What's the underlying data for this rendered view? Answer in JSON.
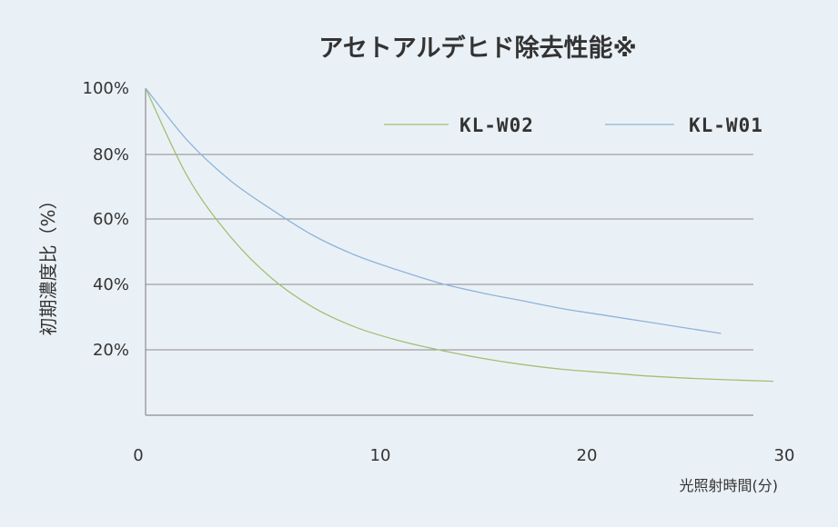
{
  "chart_data": {
    "type": "line",
    "title": "アセトアルデヒド除去性能※",
    "xlabel": "光照射時間(分)",
    "ylabel": "初期濃度比（%）",
    "xlim": [
      0,
      30
    ],
    "ylim": [
      0,
      100
    ],
    "x_ticks": [
      "0",
      "10",
      "20",
      "30"
    ],
    "y_ticks": [
      "100%",
      "80%",
      "60%",
      "40%",
      "20%"
    ],
    "grid": "horizontal",
    "legend_position": "top-right",
    "series": [
      {
        "name": "KL-W02",
        "color": "#a3bf74",
        "x": [
          0,
          2,
          4,
          6,
          8,
          10,
          12,
          14,
          16,
          18,
          20,
          22,
          24,
          26,
          28,
          30
        ],
        "y": [
          100,
          73,
          55,
          42,
          33,
          27,
          23,
          20,
          17.5,
          15.5,
          14,
          13,
          12,
          11.3,
          10.8,
          10.4
        ]
      },
      {
        "name": "KL-W01",
        "color": "#8fb3dc",
        "x": [
          0,
          2,
          4,
          6,
          8,
          10,
          12,
          14,
          16,
          18,
          20,
          22,
          24,
          26,
          27.5
        ],
        "y": [
          100,
          84,
          72,
          63,
          55,
          49,
          44.5,
          40.5,
          37.5,
          35,
          32.5,
          30.5,
          28.5,
          26.5,
          25
        ]
      }
    ]
  }
}
